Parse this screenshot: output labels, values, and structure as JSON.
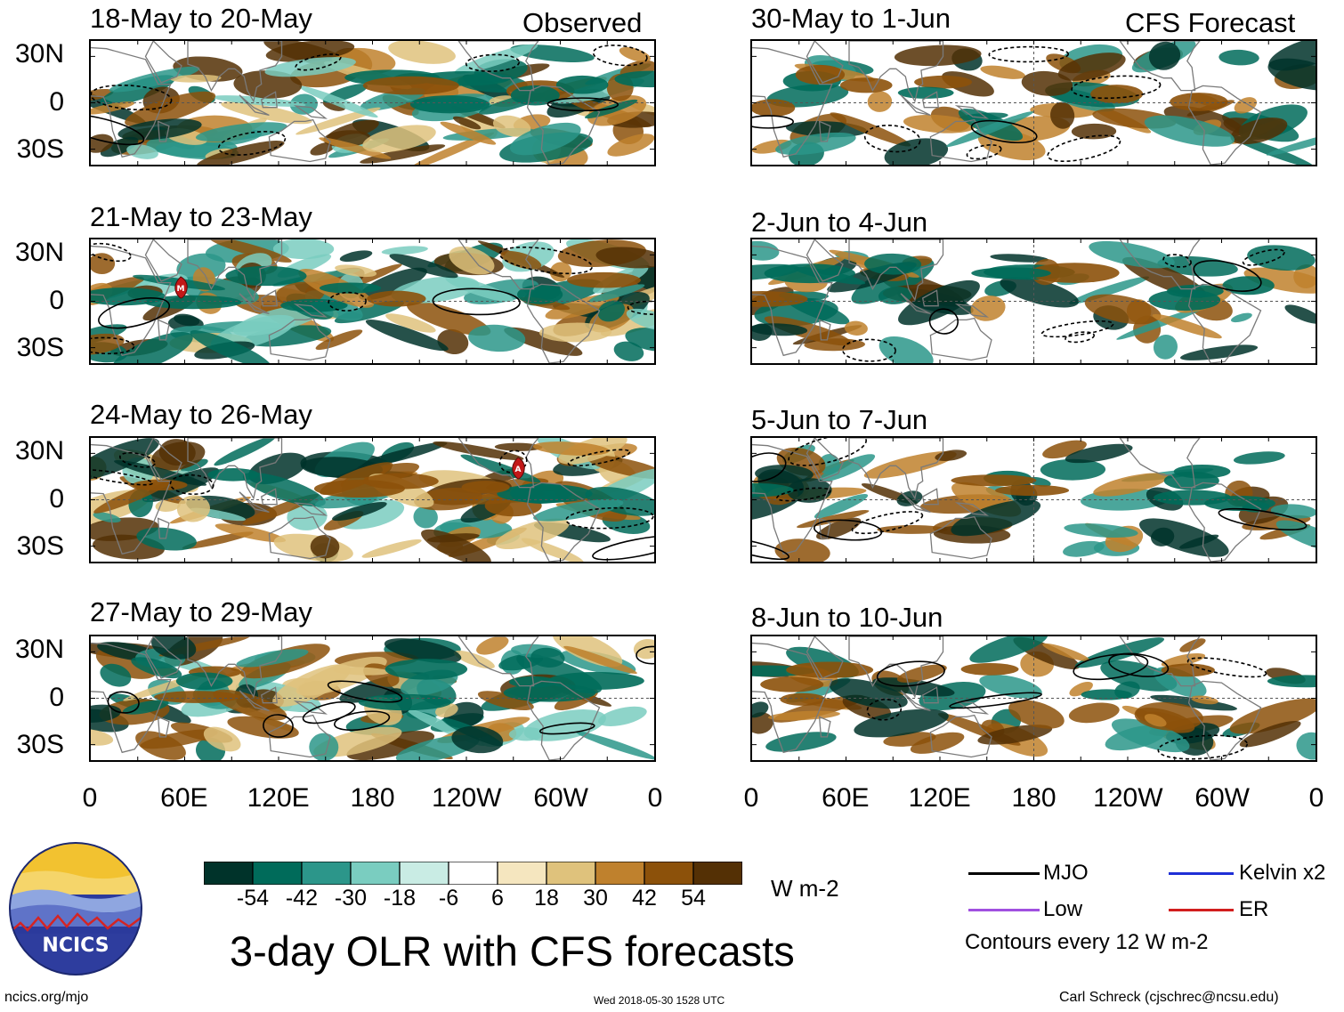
{
  "headers": {
    "left": "Observed",
    "right": "CFS Forecast"
  },
  "left_panels": [
    {
      "title": "18-May to 20-May"
    },
    {
      "title": "21-May to 23-May",
      "marker": "M"
    },
    {
      "title": "24-May to 26-May",
      "marker": "A"
    },
    {
      "title": "27-May to 29-May"
    }
  ],
  "right_panels": [
    {
      "title": "30-May to 1-Jun"
    },
    {
      "title": "2-Jun to 4-Jun"
    },
    {
      "title": "5-Jun to 7-Jun"
    },
    {
      "title": "8-Jun to 10-Jun"
    }
  ],
  "lat_labels": [
    "30N",
    "0",
    "30S"
  ],
  "lon_labels": [
    "0",
    "60E",
    "120E",
    "180",
    "120W",
    "60W",
    "0"
  ],
  "colorbar": {
    "colors": [
      "#00332a",
      "#006b5a",
      "#2c968a",
      "#7acdc0",
      "#c9ece4",
      "#ffffff",
      "#f5e6bf",
      "#dfc27c",
      "#bf812d",
      "#8c510a",
      "#543005"
    ],
    "labels": [
      "-54",
      "-42",
      "-30",
      "-18",
      "-6",
      "6",
      "18",
      "30",
      "42",
      "54"
    ],
    "units": "W m-2"
  },
  "logo": {
    "text": "NCICS"
  },
  "main_title": "3-day OLR with CFS forecasts",
  "legend": {
    "items": [
      {
        "label": "MJO",
        "color": "#000000"
      },
      {
        "label": "Kelvin x2",
        "color": "#1f2fd6"
      },
      {
        "label": "Low",
        "color": "#a050e0"
      },
      {
        "label": "ER",
        "color": "#d21e1e"
      }
    ],
    "note": "Contours every 12 W m-2"
  },
  "footer": {
    "left": "ncics.org/mjo",
    "center": "Wed 2018-05-30 1528 UTC",
    "right": "Carl Schreck (cjschrec@ncsu.edu)"
  }
}
